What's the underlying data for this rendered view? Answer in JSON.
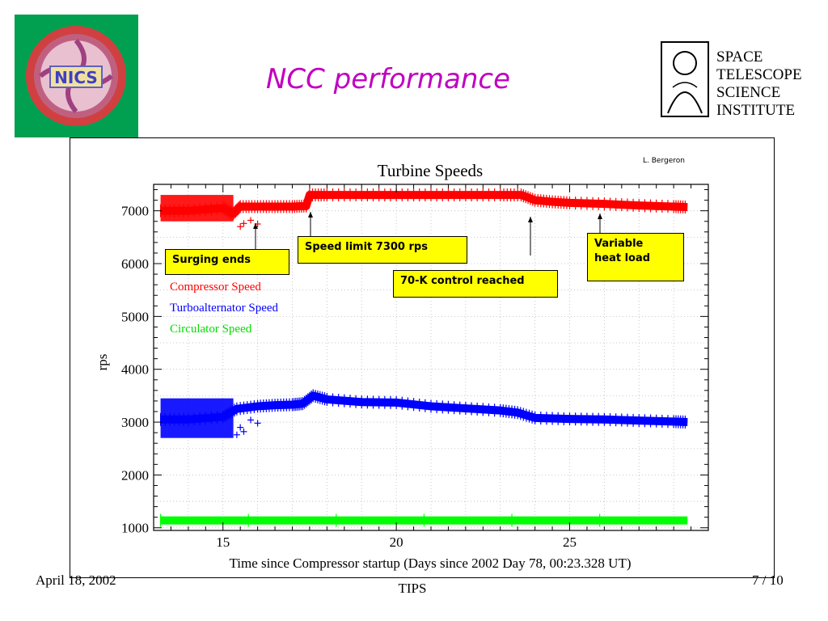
{
  "slide": {
    "title": "NCC performance",
    "footer_date": "April 18, 2002",
    "footer_center": "TIPS",
    "page_number": "7 / 10",
    "credit": "L. Bergeron"
  },
  "logos": {
    "nic_text": "NICS",
    "stsci_lines": [
      "SPACE",
      "TELESCOPE",
      "SCIENCE",
      "INSTITUTE"
    ]
  },
  "annotations": {
    "surging": "Surging ends",
    "speed_limit": "Speed limit 7300 rps",
    "control": "70-K control reached",
    "heat_load_1": "Variable",
    "heat_load_2": "heat load"
  },
  "chart_data": {
    "type": "line",
    "title": "Turbine Speeds",
    "xlabel": "Time since Compressor startup (Days since 2002 Day 78, 00:23.328 UT)",
    "ylabel": "rps",
    "xlim": [
      13,
      29
    ],
    "ylim": [
      950,
      7500
    ],
    "xticks": [
      15,
      20,
      25
    ],
    "yticks": [
      1000,
      2000,
      3000,
      4000,
      5000,
      6000,
      7000
    ],
    "grid": true,
    "legend_position": "upper-left",
    "series": [
      {
        "name": "Compressor Speed",
        "color": "#ff0000",
        "x": [
          13.2,
          14.0,
          15.0,
          15.3,
          15.5,
          16.0,
          16.5,
          17.0,
          17.4,
          17.5,
          18.0,
          19.0,
          20.0,
          21.0,
          22.0,
          23.0,
          23.6,
          24.0,
          24.5,
          25.0,
          26.0,
          27.0,
          28.0,
          28.4
        ],
        "y": [
          7000,
          7000,
          7050,
          6950,
          7080,
          7080,
          7080,
          7080,
          7090,
          7300,
          7300,
          7300,
          7300,
          7300,
          7300,
          7300,
          7300,
          7200,
          7170,
          7150,
          7130,
          7100,
          7080,
          7070
        ],
        "band_until_x": 15.3,
        "band_range": [
          6800,
          7300
        ]
      },
      {
        "name": "Turboalternator Speed",
        "color": "#0000ff",
        "x": [
          13.2,
          14.0,
          15.0,
          15.4,
          16.0,
          16.5,
          17.0,
          17.3,
          17.6,
          18.0,
          19.0,
          20.0,
          21.0,
          22.0,
          23.0,
          23.5,
          24.0,
          25.0,
          26.0,
          27.0,
          28.0,
          28.4
        ],
        "y": [
          3050,
          3050,
          3100,
          3250,
          3300,
          3320,
          3330,
          3350,
          3500,
          3430,
          3380,
          3370,
          3300,
          3260,
          3220,
          3180,
          3080,
          3060,
          3050,
          3030,
          3010,
          3000
        ],
        "band_until_x": 15.3,
        "band_range": [
          2700,
          3450
        ]
      },
      {
        "name": "Circulator Speed",
        "color": "#00ff00",
        "x": [
          13.2,
          28.4
        ],
        "y": [
          1140,
          1140
        ]
      }
    ],
    "annotations": [
      {
        "label": "Surging ends",
        "x": 15.9,
        "y": 6850
      },
      {
        "label": "Speed limit 7300 rps",
        "x": 17.5,
        "y": 7000
      },
      {
        "label": "70-K control reached",
        "x": 24.0,
        "y": 6850
      },
      {
        "label": "Variable heat load",
        "x": 26.0,
        "y": 7000
      }
    ]
  }
}
